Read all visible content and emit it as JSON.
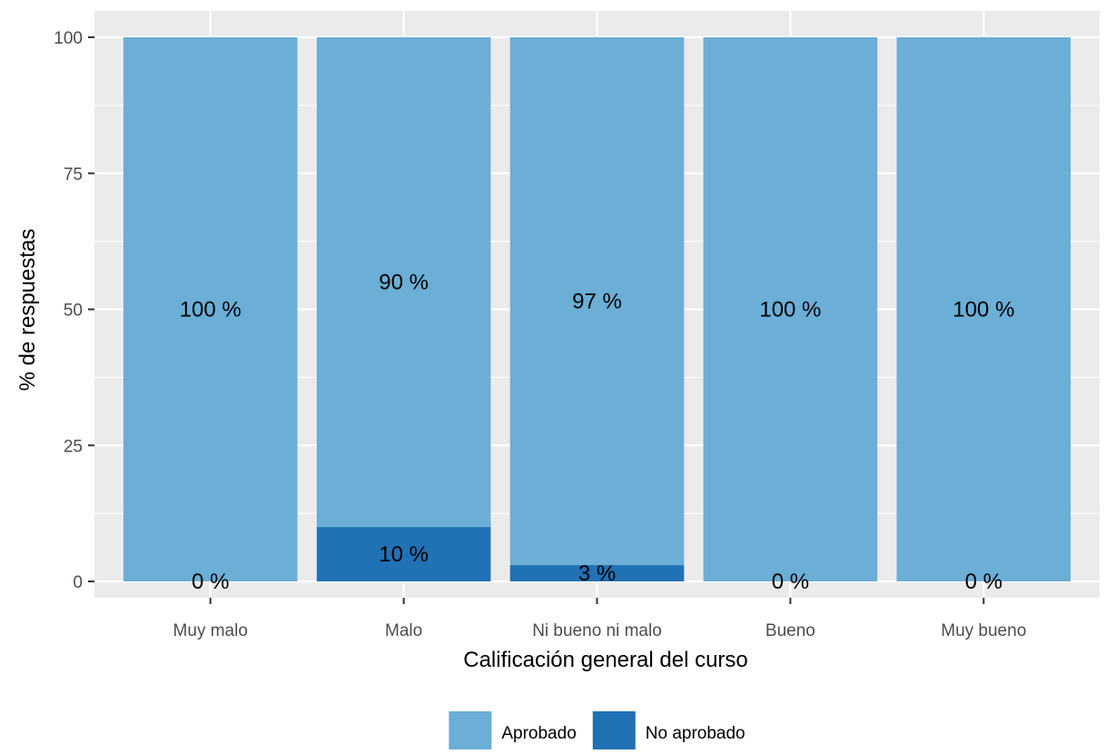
{
  "chart_data": {
    "type": "bar",
    "stacked": true,
    "categories": [
      "Muy malo",
      "Malo",
      "Ni bueno ni malo",
      "Bueno",
      "Muy bueno"
    ],
    "series": [
      {
        "name": "No aprobado",
        "values": [
          0,
          10,
          3,
          0,
          0
        ],
        "labels": [
          "0 %",
          "10 %",
          "3 %",
          "0 %",
          "0 %"
        ],
        "color": "#2171b5"
      },
      {
        "name": "Aprobado",
        "values": [
          100,
          90,
          97,
          100,
          100
        ],
        "labels": [
          "100 %",
          "90 %",
          "97 %",
          "100 %",
          "100 %"
        ],
        "color": "#6baed6"
      }
    ],
    "xlabel": "Calificación general del curso",
    "ylabel": "% de respuestas",
    "ylim": [
      0,
      100
    ],
    "yticks": [
      0,
      25,
      50,
      75,
      100
    ],
    "grid": true,
    "legend_position": "bottom",
    "panel_background": "#ebebeb"
  }
}
